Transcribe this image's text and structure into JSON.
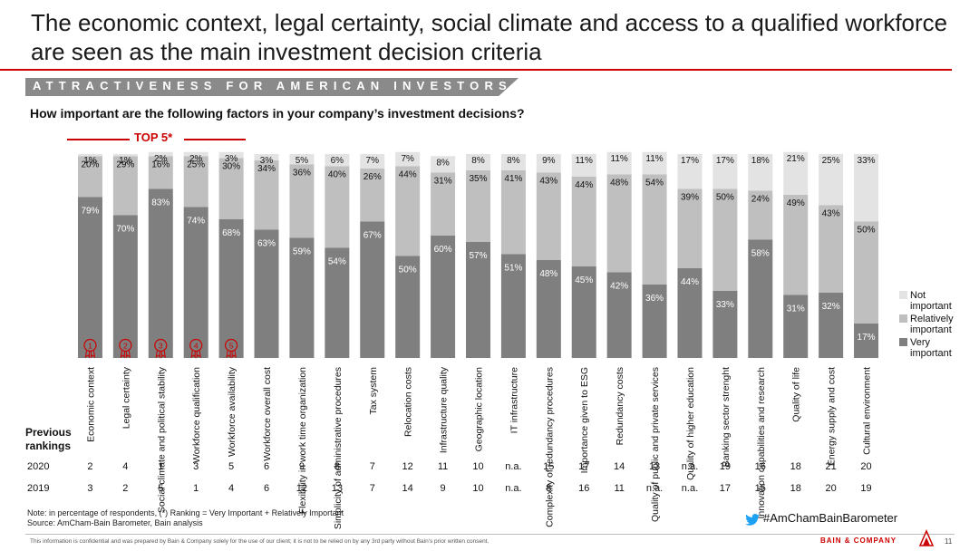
{
  "title": "The economic context, legal certainty, social climate and access to a qualified workforce are seen as the main investment decision criteria",
  "banner": "ATTRACTIVENESS FOR AMERICAN INVESTORS",
  "question": "How important are the following factors in your company’s investment decisions?",
  "top5_label": "TOP 5*",
  "colors": {
    "very_important": "#7f7f7f",
    "relatively_important": "#bfbfbf",
    "not_important": "#e3e3e3",
    "accent": "#cc0000"
  },
  "previous_rankings_label": "Previous rankings",
  "years": [
    "2020",
    "2019"
  ],
  "rankings_2020": [
    "2",
    "4",
    "1",
    "3",
    "5",
    "6",
    "9",
    "8",
    "7",
    "12",
    "11",
    "10",
    "n.a.",
    "15",
    "17",
    "14",
    "13",
    "n.a.",
    "19",
    "16",
    "18",
    "21",
    "20"
  ],
  "rankings_2019": [
    "3",
    "2",
    "5",
    "1",
    "4",
    "6",
    "12",
    "13",
    "7",
    "14",
    "9",
    "10",
    "n.a.",
    "8",
    "16",
    "11",
    "n.a.",
    "n.a.",
    "17",
    "15",
    "18",
    "20",
    "19"
  ],
  "badges": [
    "1",
    "2",
    "3",
    "4",
    "5"
  ],
  "note": "Note: in percentage of respondents, (*) Ranking = Very Important + Relatively Important",
  "source": "Source: AmCham-Bain Barometer, Bain analysis",
  "hashtag": "#AmChamBainBarometer",
  "confidential": "This information is confidential and was prepared by Bain & Company solely for the use of our client; it is not to be relied on by any 3rd party without Bain's prior written consent.",
  "logo": "BAIN & COMPANY",
  "page_number": "11",
  "chart_data": {
    "type": "bar",
    "stacked": true,
    "categories": [
      "Economic context",
      "Legal certainty",
      "Social climate and political stability",
      "Workforce qualification",
      "Workforce availability",
      "Workforce overall cost",
      "Flexibility in work time organization",
      "Simplicity of administrative procedures",
      "Tax system",
      "Relocation costs",
      "Infrastructure quality",
      "Geographic location",
      "IT infrastructure",
      "Complexity of redundancy procedures",
      "Importance given to ESG",
      "Redundancy costs",
      "Quality of public and private services",
      "Quality of higher education",
      "Banking sector strenght",
      "Innovation capabilities and research",
      "Quality of life",
      "Energy supply and cost",
      "Cultural environment"
    ],
    "series": [
      {
        "name": "Very important",
        "values": [
          79,
          70,
          83,
          74,
          68,
          63,
          59,
          54,
          67,
          50,
          60,
          57,
          51,
          48,
          45,
          42,
          36,
          44,
          33,
          58,
          31,
          32,
          17
        ]
      },
      {
        "name": "Relatively important",
        "values": [
          20,
          29,
          16,
          25,
          30,
          34,
          36,
          40,
          26,
          44,
          31,
          35,
          41,
          43,
          44,
          48,
          54,
          39,
          50,
          24,
          49,
          43,
          50
        ]
      },
      {
        "name": "Not important",
        "values": [
          1,
          1,
          2,
          2,
          3,
          3,
          5,
          6,
          7,
          7,
          8,
          8,
          8,
          9,
          11,
          11,
          11,
          17,
          17,
          18,
          21,
          25,
          33
        ]
      }
    ],
    "ylim": [
      0,
      100
    ],
    "legend_position": "right"
  }
}
